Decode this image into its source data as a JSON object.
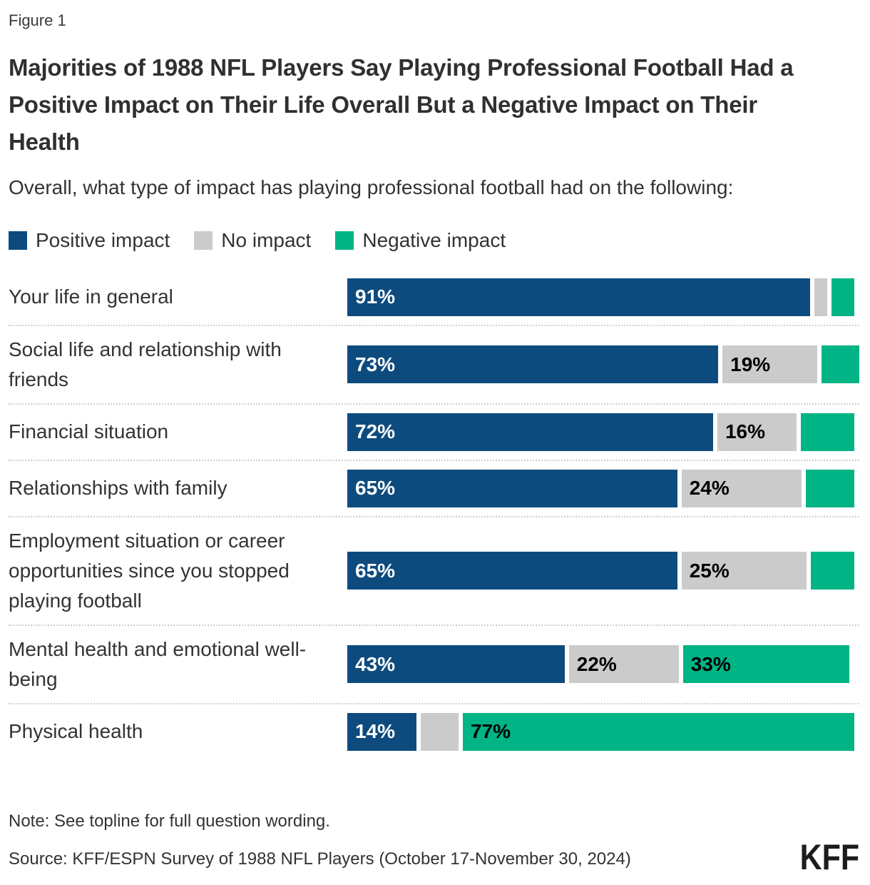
{
  "figure_label": "Figure 1",
  "title": "Majorities of 1988 NFL Players Say Playing Professional Football Had a Positive Impact on Their Life Overall But a Negative Impact on Their Health",
  "subtitle": "Overall, what type of impact has playing professional football had on the following:",
  "legend": {
    "position": "top",
    "items": [
      {
        "label": "Positive impact",
        "color": "#0D4B7E"
      },
      {
        "label": "No impact",
        "color": "#CBCBCB"
      },
      {
        "label": "Negative impact",
        "color": "#00B485"
      }
    ]
  },
  "chart_data": {
    "type": "bar",
    "orientation": "horizontal_stacked",
    "unit": "percent",
    "xlim": [
      0,
      100
    ],
    "grid": false,
    "legend_position": "top",
    "title": "Majorities of 1988 NFL Players Say Playing Professional Football Had a Positive Impact on Their Life Overall But a Negative Impact on Their Health",
    "subtitle": "Overall, what type of impact has playing professional football had on the following:",
    "categories": [
      "Your life in general",
      "Social life and relationship with friends",
      "Financial situation",
      "Relationships with family",
      "Employment situation or career opportunities since you stopped playing football",
      "Mental health and emotional well-being",
      "Physical health"
    ],
    "series": [
      {
        "name": "Positive impact",
        "color": "#0D4B7E",
        "label_color": "#FFFFFF",
        "values": [
          91,
          73,
          72,
          65,
          65,
          43,
          14
        ],
        "labels": [
          "91%",
          "73%",
          "72%",
          "65%",
          "65%",
          "43%",
          "14%"
        ]
      },
      {
        "name": "No impact",
        "color": "#CBCBCB",
        "label_color": "#000000",
        "values": [
          3,
          19,
          16,
          24,
          25,
          22,
          8
        ],
        "labels": [
          "",
          "19%",
          "16%",
          "24%",
          "25%",
          "22%",
          ""
        ]
      },
      {
        "name": "Negative impact",
        "color": "#00B485",
        "label_color": "#000000",
        "values": [
          5,
          8,
          11,
          10,
          9,
          33,
          77
        ],
        "labels": [
          "",
          "",
          "",
          "",
          "",
          "33%",
          "77%"
        ]
      }
    ]
  },
  "note": "Note: See topline for full question wording.",
  "source": "Source: KFF/ESPN Survey of 1988 NFL Players (October 17-November 30, 2024)",
  "logo": {
    "text": "KFF"
  }
}
